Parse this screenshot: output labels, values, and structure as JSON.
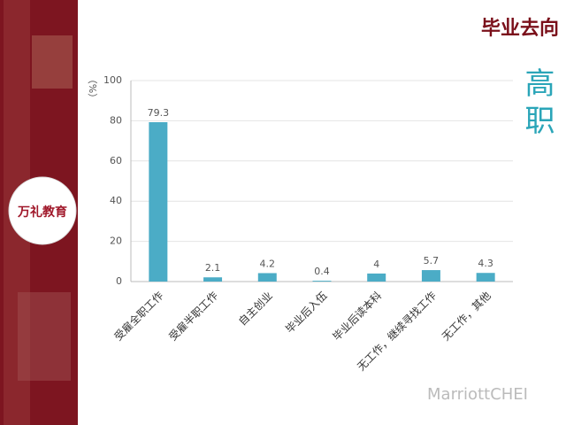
{
  "header": {
    "title": "毕业去向",
    "side_label": "高职",
    "logo_text": "万礼教育",
    "watermark": "MarriottCHEI"
  },
  "chart_data": {
    "type": "bar",
    "y_label": "（%）",
    "categories": [
      "受雇全职工作",
      "受雇半职工作",
      "自主创业",
      "毕业后入伍",
      "毕业后读本科",
      "无工作，继续寻找工作",
      "无工作，其他"
    ],
    "values": [
      79.3,
      2.1,
      4.2,
      0.4,
      4,
      5.7,
      4.3
    ],
    "color": "#4bacc6",
    "ylim": [
      0,
      100
    ],
    "yticks": [
      0,
      20,
      40,
      60,
      80,
      100
    ],
    "grid": true
  }
}
